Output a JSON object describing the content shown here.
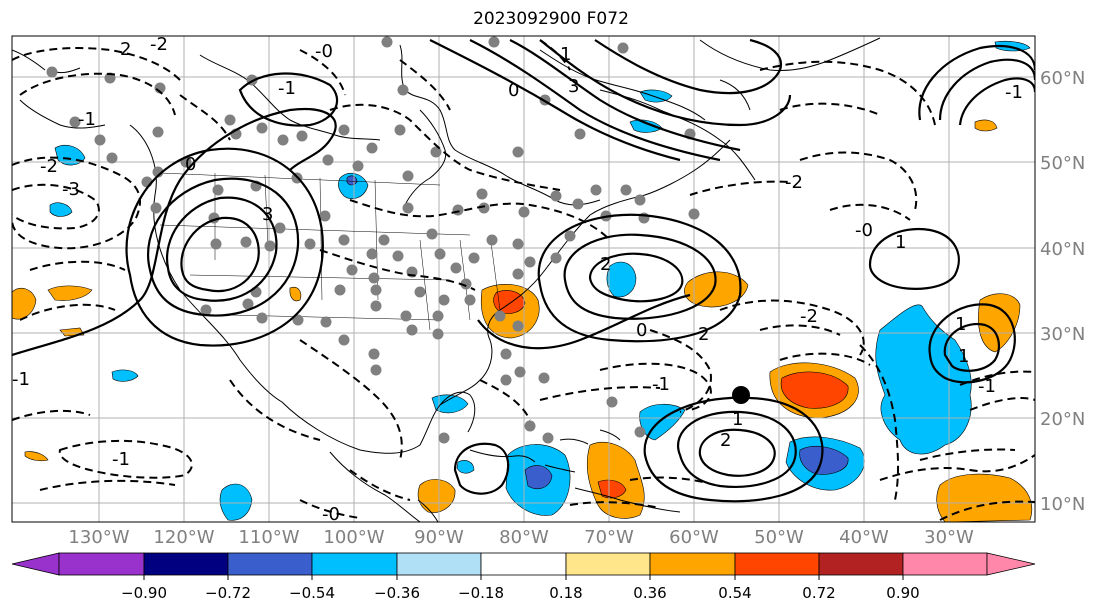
{
  "title": "2023092900 F072",
  "longitude_labels": [
    "130°W",
    "120°W",
    "110°W",
    "100°W",
    "90°W",
    "80°W",
    "70°W",
    "60°W",
    "50°W",
    "40°W",
    "30°W"
  ],
  "latitude_labels": [
    "60°N",
    "50°N",
    "40°N",
    "30°N",
    "20°N",
    "10°N"
  ],
  "colorbar": {
    "tick_labels": [
      "−0.90",
      "−0.72",
      "−0.54",
      "−0.36",
      "−0.18",
      "0.18",
      "0.36",
      "0.54",
      "0.72",
      "0.90"
    ],
    "colors": [
      "#9932cc",
      "#000080",
      "#3a5fcd",
      "#00bfff",
      "#b0e0f6",
      "#ffffff",
      "#ffe68a",
      "#ffa500",
      "#ff4500",
      "#b22222",
      "#ff88aa"
    ]
  },
  "contour_labels": [
    "2",
    "-2",
    "-0",
    "-1",
    "-1",
    "1",
    "3",
    "-2",
    "-3",
    "3",
    "0",
    "0",
    "-1",
    "1",
    "-0",
    "-2",
    "-2",
    "-1",
    "1",
    "2",
    "2",
    "-1",
    "1",
    "1",
    "2",
    "0",
    "-1",
    "-1",
    "-0"
  ],
  "fill_colors": {
    "land_line": "#000000",
    "grid": "#b0b0b0",
    "station": "#808080",
    "marker": "#000000"
  }
}
